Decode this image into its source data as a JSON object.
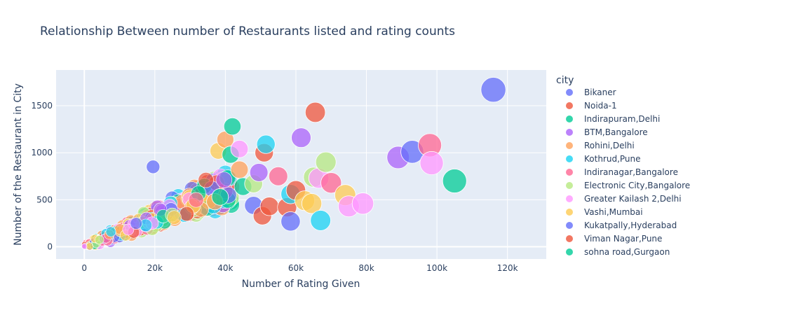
{
  "chart_data": {
    "type": "scatter",
    "title": "Relationship Between number of Restaurants listed and rating counts",
    "xlabel": "Number of Rating Given",
    "ylabel": "Number of the Restaurant in City",
    "xlim": [
      -8000,
      131000
    ],
    "ylim": [
      -130,
      1880
    ],
    "x_ticks": [
      0,
      20000,
      40000,
      60000,
      80000,
      100000,
      120000
    ],
    "x_tick_labels": [
      "0",
      "20k",
      "40k",
      "60k",
      "80k",
      "100k",
      "120k"
    ],
    "y_ticks": [
      0,
      500,
      1000,
      1500
    ],
    "y_tick_labels": [
      "0",
      "500",
      "1000",
      "1500"
    ],
    "grid": true,
    "legend_title": "city",
    "legend_position": "right",
    "size_encoding": "marker area proportional to rating count",
    "series": [
      {
        "name": "Bikaner",
        "color": "#636efa",
        "x": [
          116000,
          19500
        ],
        "y": [
          1670,
          850
        ]
      },
      {
        "name": "Noida-1",
        "color": "#EF553B",
        "x": [
          65500,
          51000,
          60000
        ],
        "y": [
          1430,
          1000,
          600
        ]
      },
      {
        "name": "Indirapuram,Delhi",
        "color": "#00cc96",
        "x": [
          105000,
          42000,
          41500
        ],
        "y": [
          700,
          1280,
          980
        ]
      },
      {
        "name": "BTM,Bangalore",
        "color": "#ab63fa",
        "x": [
          89000,
          61500,
          49500
        ],
        "y": [
          950,
          1160,
          790
        ]
      },
      {
        "name": "Rohini,Delhi",
        "color": "#FFA15A",
        "x": [
          40000,
          44000,
          37000
        ],
        "y": [
          1140,
          820,
          480
        ]
      },
      {
        "name": "Kothrud,Pune",
        "color": "#19d3f3",
        "x": [
          67000,
          51500,
          58500
        ],
        "y": [
          280,
          1090,
          560
        ]
      },
      {
        "name": "Indiranagar,Bangalore",
        "color": "#FF6692",
        "x": [
          98000,
          55000,
          70000
        ],
        "y": [
          1080,
          750,
          680
        ]
      },
      {
        "name": "Electronic City,Bangalore",
        "color": "#B6E880",
        "x": [
          68500,
          65000,
          48000
        ],
        "y": [
          900,
          740,
          670
        ]
      },
      {
        "name": "Greater Kailash 2,Delhi",
        "color": "#FF97FF",
        "x": [
          98500,
          79000,
          75000,
          66500,
          44000
        ],
        "y": [
          890,
          460,
          430,
          730,
          1040
        ]
      },
      {
        "name": "Vashi,Mumbai",
        "color": "#FECB52",
        "x": [
          74000,
          62500,
          64500,
          38000
        ],
        "y": [
          550,
          490,
          460,
          1020
        ]
      },
      {
        "name": "Kukatpally,Hyderabad",
        "color": "#636efa",
        "x": [
          93000,
          58500,
          48000
        ],
        "y": [
          1010,
          270,
          440
        ]
      },
      {
        "name": "Viman Nagar,Pune",
        "color": "#EF553B",
        "x": [
          57500,
          52500,
          50500
        ],
        "y": [
          420,
          430,
          330
        ]
      },
      {
        "name": "sohna road,Gurgaon",
        "color": "#00cc96",
        "x": [
          45000,
          38500
        ],
        "y": [
          640,
          530
        ]
      }
    ]
  },
  "colors": {
    "plot_bg": "#e5ecf6",
    "grid": "#ffffff",
    "text": "#2a3f5f",
    "palette": [
      "#636efa",
      "#EF553B",
      "#00cc96",
      "#ab63fa",
      "#FFA15A",
      "#19d3f3",
      "#FF6692",
      "#B6E880",
      "#FF97FF",
      "#FECB52"
    ]
  }
}
